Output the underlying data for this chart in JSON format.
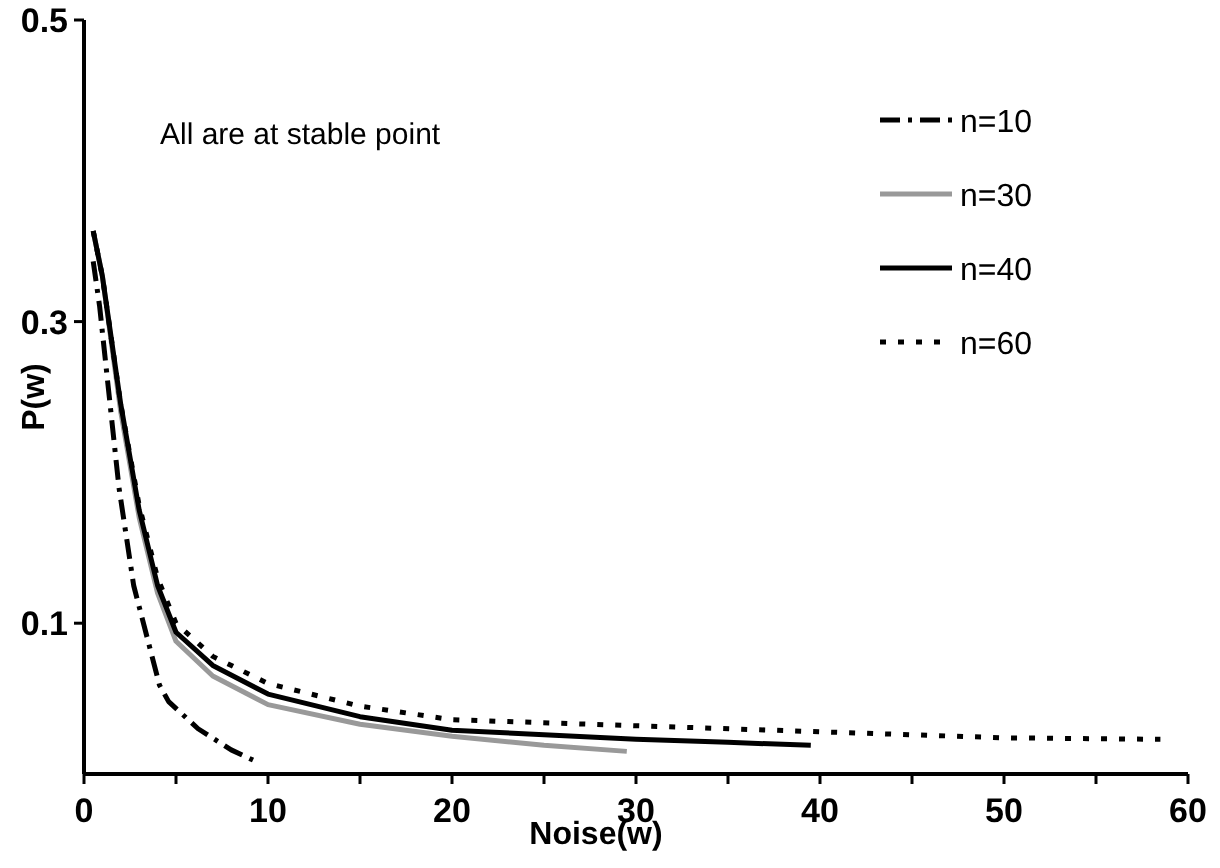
{
  "chart_data": {
    "type": "line",
    "xlabel": "Noise(w)",
    "ylabel": "P(w)",
    "xlim": [
      0,
      60
    ],
    "ylim": [
      0,
      0.5
    ],
    "xticks": [
      0,
      {
        "value": 5,
        "label": null
      },
      10,
      {
        "value": 15,
        "label": null
      },
      20,
      {
        "value": 25,
        "label": null
      },
      30,
      {
        "value": 35,
        "label": null
      },
      40,
      {
        "value": 45,
        "label": null
      },
      50,
      {
        "value": 55,
        "label": null
      },
      60
    ],
    "yticks": [
      0.1,
      0.3,
      0.5
    ],
    "grid": false,
    "legend": "top right",
    "annotations": [
      "All are at stable point"
    ],
    "series": [
      {
        "name": "n=10",
        "color": "#000000",
        "line_style": "dashdot",
        "x": [
          0.5,
          0.85,
          1.9,
          2.7,
          4.1,
          4.6,
          6.2,
          8,
          9.4
        ],
        "values": [
          0.34,
          0.31,
          0.19,
          0.125,
          0.059,
          0.048,
          0.03,
          0.016,
          0.008
        ]
      },
      {
        "name": "n=30",
        "color": "#999999",
        "line_style": "solid",
        "x": [
          0.5,
          1,
          2,
          3,
          4,
          5,
          7,
          10,
          15,
          20,
          25,
          29.5
        ],
        "values": [
          0.36,
          0.33,
          0.24,
          0.17,
          0.12,
          0.088,
          0.065,
          0.046,
          0.033,
          0.025,
          0.019,
          0.015
        ]
      },
      {
        "name": "n=40",
        "color": "#000000",
        "line_style": "solid",
        "x": [
          0.5,
          1,
          2,
          3,
          4,
          5,
          7,
          10,
          15,
          20,
          25,
          30,
          35,
          39.5
        ],
        "values": [
          0.36,
          0.33,
          0.245,
          0.175,
          0.125,
          0.094,
          0.072,
          0.053,
          0.038,
          0.029,
          0.026,
          0.023,
          0.021,
          0.019
        ]
      },
      {
        "name": "n=60",
        "color": "#000000",
        "line_style": "dotted",
        "x": [
          0.5,
          1,
          2,
          3,
          4,
          5,
          7,
          10,
          15,
          20,
          30,
          40,
          50,
          58.5
        ],
        "values": [
          0.36,
          0.33,
          0.245,
          0.178,
          0.13,
          0.1,
          0.078,
          0.06,
          0.045,
          0.036,
          0.032,
          0.028,
          0.024,
          0.023
        ]
      }
    ]
  }
}
